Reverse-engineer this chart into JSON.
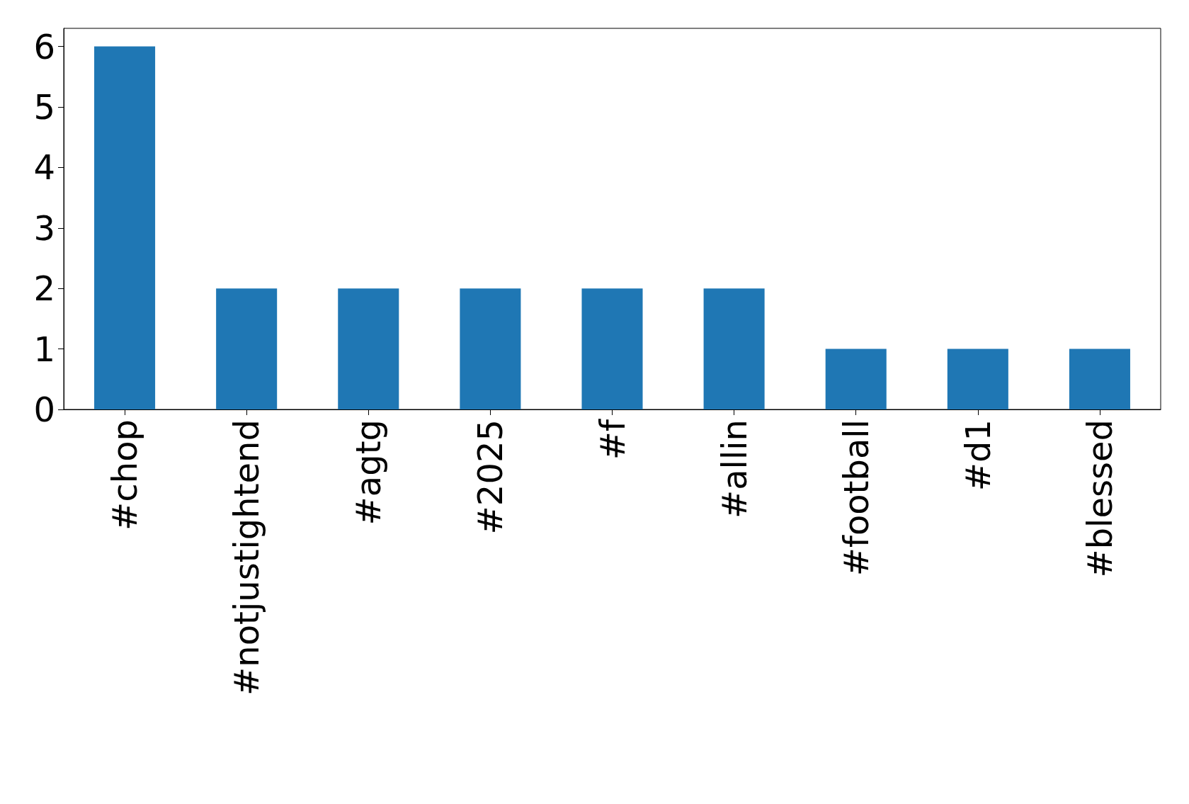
{
  "chart_data": {
    "type": "bar",
    "categories": [
      "#chop",
      "#notjustightend",
      "#agtg",
      "#2025",
      "#f",
      "#allin",
      "#football",
      "#d1",
      "#blessed"
    ],
    "values": [
      6,
      2,
      2,
      2,
      2,
      2,
      1,
      1,
      1
    ],
    "color": "#1f77b4",
    "ylim": [
      0,
      6.3
    ],
    "yticks": [
      0,
      1,
      2,
      3,
      4,
      5,
      6
    ],
    "grid": false
  }
}
